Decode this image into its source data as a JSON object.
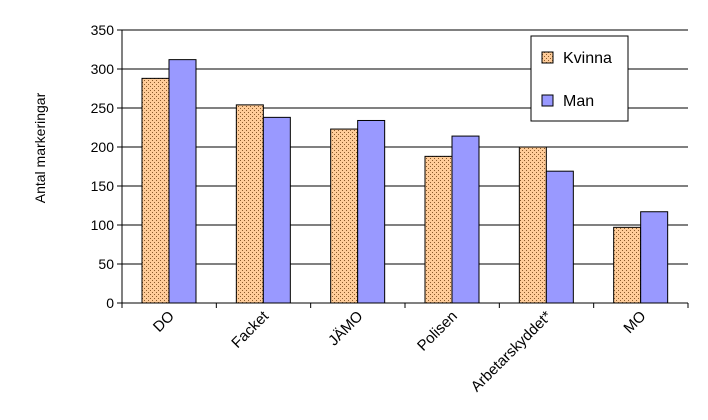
{
  "chart_data": {
    "type": "bar",
    "ylabel": "Antal markeringar",
    "xlabel": "",
    "categories": [
      "DO",
      "Facket",
      "JÄMO",
      "Polisen",
      "Arbetarskyddet*",
      "MO"
    ],
    "series": [
      {
        "name": "Kvinna",
        "values": [
          288,
          254,
          223,
          188,
          200,
          97
        ],
        "color": "#ffcc99",
        "pattern": "dotted"
      },
      {
        "name": "Man",
        "values": [
          312,
          238,
          234,
          214,
          169,
          117
        ],
        "color": "#9999ff",
        "pattern": "solid"
      }
    ],
    "ylim": [
      0,
      350
    ],
    "yticks": [
      0,
      50,
      100,
      150,
      200,
      250,
      300,
      350
    ],
    "grid": true,
    "legend_position": "top-right"
  }
}
